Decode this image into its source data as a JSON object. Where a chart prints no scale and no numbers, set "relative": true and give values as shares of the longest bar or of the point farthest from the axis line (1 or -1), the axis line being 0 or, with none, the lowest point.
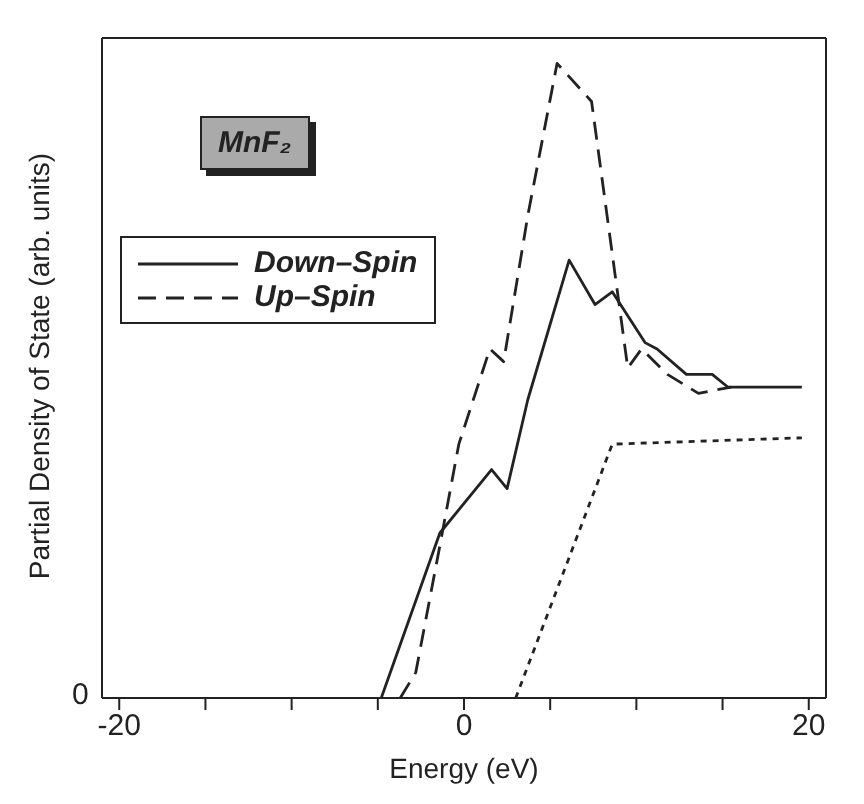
{
  "chart_data": {
    "type": "line",
    "relative": true,
    "xlabel": "Energy (eV)",
    "ylabel": "Partial Density of State (arb. units)",
    "xlim": [
      -21,
      21
    ],
    "xticks": [
      -20,
      {
        "value": -15,
        "label": null
      },
      {
        "value": -10,
        "label": null
      },
      {
        "value": -5,
        "label": null
      },
      0,
      {
        "value": 5,
        "label": null
      },
      {
        "value": 10,
        "label": null
      },
      {
        "value": 15,
        "label": null
      },
      20
    ],
    "legend": "top left",
    "marker": "none",
    "annotations": [
      "MnF₂",
      "0"
    ],
    "series": [
      {
        "name": "Down–Spin",
        "color": "#222222",
        "line_style": "solid",
        "x": [
          -4.8,
          -1.4,
          1.6,
          2.5,
          3.7,
          6.1,
          7.6,
          8.6,
          10.5,
          11.2,
          12.9,
          14.4,
          15.3,
          19.6
        ],
        "values": [
          0,
          0.26,
          0.36,
          0.33,
          0.47,
          0.69,
          0.62,
          0.64,
          0.56,
          0.55,
          0.51,
          0.51,
          0.49,
          0.49
        ]
      },
      {
        "name": "Up–Spin",
        "color": "#222222",
        "line_style": "dashed",
        "x": [
          -3.7,
          -2.8,
          -1.4,
          -0.3,
          1.5,
          2.3,
          3.7,
          5.4,
          7.4,
          9.5,
          10.3,
          11.8,
          13.6,
          15.5
        ],
        "values": [
          0,
          0.04,
          0.24,
          0.4,
          0.55,
          0.53,
          0.76,
          1,
          0.94,
          0.52,
          0.55,
          0.51,
          0.48,
          0.49
        ]
      },
      {
        "color": "#222222",
        "line_style": "dotted",
        "x": [
          3,
          8.6,
          19.6
        ],
        "values": [
          0,
          0.4,
          0.41
        ]
      }
    ]
  }
}
